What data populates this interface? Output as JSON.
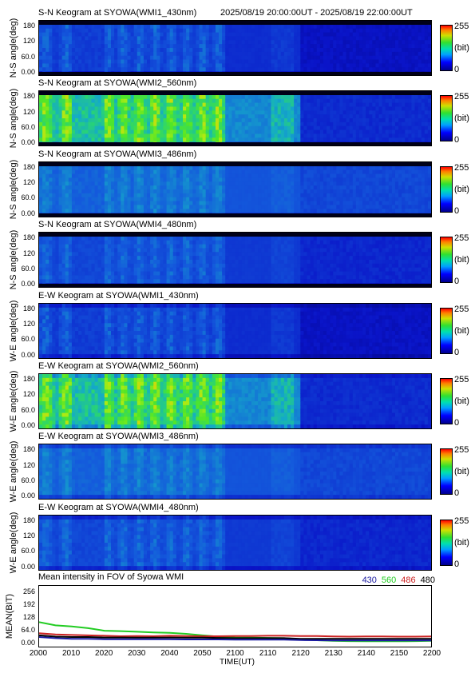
{
  "header": {
    "time_range": "2025/08/19 20:00:00UT - 2025/08/19 22:00:00UT"
  },
  "colorbar": {
    "max_label": "255",
    "unit_label": "(bit)",
    "min_label": "0"
  },
  "ns_ticks": [
    "180",
    "120",
    "60.0",
    "0.00"
  ],
  "panels": [
    {
      "title": "S-N Keogram at SYOWA(WMI1_430nm)",
      "ylabel": "N-S angle(deg)",
      "scheme": "blue",
      "band": "N-S"
    },
    {
      "title": "S-N Keogram at SYOWA(WMI2_560nm)",
      "ylabel": "N-S angle(deg)",
      "scheme": "green",
      "band": "N-S"
    },
    {
      "title": "S-N Keogram at SYOWA(WMI3_486nm)",
      "ylabel": "N-S angle(deg)",
      "scheme": "teal",
      "band": "N-S"
    },
    {
      "title": "S-N Keogram at SYOWA(WMI4_480nm)",
      "ylabel": "N-S angle(deg)",
      "scheme": "blue2",
      "band": "N-S"
    },
    {
      "title": "E-W Keogram at SYOWA(WMI1_430nm)",
      "ylabel": "W-E angle(deg)",
      "scheme": "blue",
      "band": "W-E"
    },
    {
      "title": "E-W Keogram at SYOWA(WMI2_560nm)",
      "ylabel": "W-E angle(deg)",
      "scheme": "green",
      "band": "W-E"
    },
    {
      "title": "E-W Keogram at SYOWA(WMI3_486nm)",
      "ylabel": "W-E angle(deg)",
      "scheme": "teal",
      "band": "W-E"
    },
    {
      "title": "E-W Keogram at SYOWA(WMI4_480nm)",
      "ylabel": "W-E angle(deg)",
      "scheme": "blue2",
      "band": "W-E"
    }
  ],
  "mean_panel": {
    "title": "Mean intensity in FOV of Syowa WMI",
    "ylabel": "MEAN(BIT)",
    "legend": [
      {
        "label": "430",
        "color": "#1a1aa0"
      },
      {
        "label": "560",
        "color": "#22cc22"
      },
      {
        "label": "486",
        "color": "#cc2222"
      },
      {
        "label": "480",
        "color": "#000000"
      }
    ],
    "yticks": [
      "256",
      "192",
      "128",
      "64.0",
      "0.00"
    ]
  },
  "xaxis": {
    "ticks": [
      "2000",
      "2010",
      "2020",
      "2030",
      "2040",
      "2050",
      "2100",
      "2110",
      "2120",
      "2130",
      "2140",
      "2150",
      "2200"
    ],
    "label": "TIME(UT)"
  },
  "chart_data": {
    "type": "line",
    "title": "Mean intensity in FOV of Syowa WMI",
    "xlabel": "TIME(UT)",
    "ylabel": "MEAN(BIT)",
    "x_minutes": [
      0,
      5,
      10,
      15,
      20,
      25,
      30,
      35,
      40,
      45,
      50,
      55,
      60,
      65,
      70,
      75,
      80,
      85,
      90,
      95,
      100,
      105,
      110,
      115,
      120
    ],
    "x_labels": [
      "2000",
      "2010",
      "2020",
      "2030",
      "2040",
      "2050",
      "2100",
      "2110",
      "2120",
      "2130",
      "2140",
      "2150",
      "2200"
    ],
    "ylim": [
      0,
      256
    ],
    "series": [
      {
        "name": "560",
        "color": "#22cc22",
        "values": [
          100,
          85,
          80,
          72,
          60,
          58,
          55,
          52,
          50,
          45,
          38,
          32,
          28,
          27,
          26,
          25,
          20,
          15,
          12,
          11,
          10,
          10,
          10,
          11,
          12
        ]
      },
      {
        "name": "486",
        "color": "#cc2222",
        "values": [
          48,
          42,
          40,
          38,
          36,
          34,
          35,
          34,
          36,
          35,
          34,
          34,
          35,
          35,
          36,
          36,
          35,
          35,
          33,
          32,
          33,
          33,
          32,
          32,
          33
        ]
      },
      {
        "name": "480",
        "color": "#000000",
        "values": [
          38,
          32,
          30,
          30,
          28,
          28,
          27,
          27,
          28,
          27,
          27,
          26,
          25,
          25,
          25,
          25,
          22,
          22,
          22,
          22,
          22,
          22,
          22,
          22,
          22
        ]
      },
      {
        "name": "430",
        "color": "#1a1aa0",
        "values": [
          30,
          25,
          22,
          22,
          20,
          20,
          20,
          20,
          20,
          19,
          19,
          19,
          18,
          18,
          18,
          18,
          16,
          15,
          14,
          14,
          14,
          14,
          14,
          14,
          14
        ]
      }
    ]
  }
}
